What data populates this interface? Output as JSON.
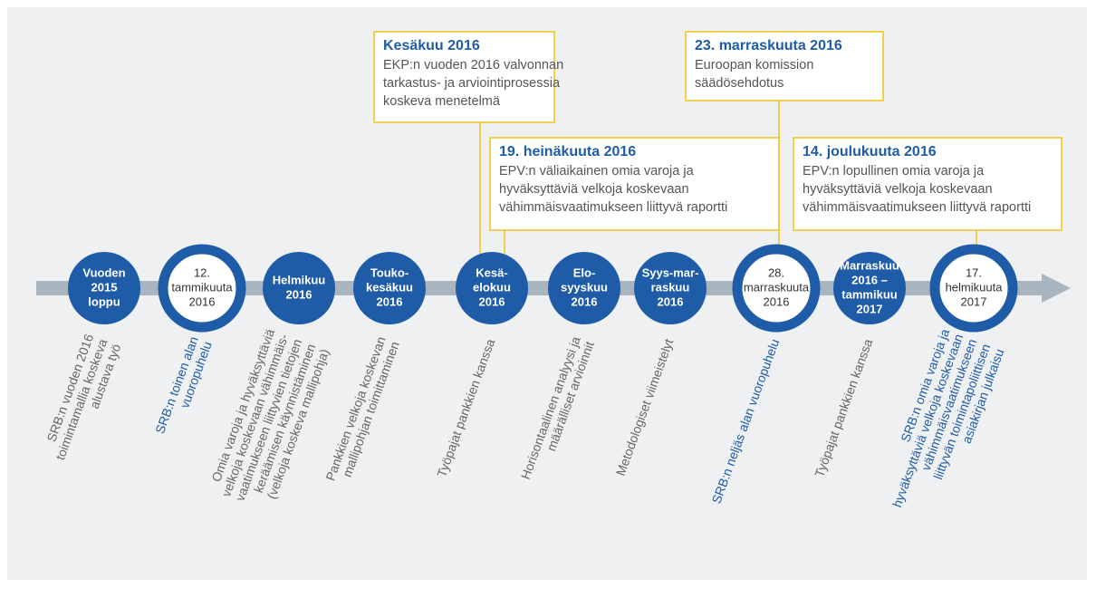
{
  "nodes": [
    {
      "label": [
        "Vuoden",
        "2015",
        "loppu"
      ],
      "big": false,
      "description": [
        "SRB:n vuoden 2016",
        "toimintamallia koskeva",
        "alustava työ"
      ],
      "highlight": false
    },
    {
      "label": [
        "12.",
        "tammikuuta",
        "2016"
      ],
      "big": true,
      "description": [
        "SRB:n toinen alan",
        "vuoropuhelu"
      ],
      "highlight": true
    },
    {
      "label": [
        "Helmikuu",
        "2016"
      ],
      "big": false,
      "description": [
        "Omia varoja ja hyväksyttäviä",
        "velkoja koskevaan vähimmäis-",
        "vaatimukseen liittyvien tietojen",
        "keräämisen käynnistäminen",
        "(velkoja koskeva mallipohja)"
      ],
      "highlight": false
    },
    {
      "label": [
        "Touko-",
        "kesäkuu",
        "2016"
      ],
      "big": false,
      "description": [
        "Pankkien velkoja koskevan",
        "mallipohjan toimittaminen"
      ],
      "highlight": false
    },
    {
      "label": [
        "Kesä-",
        "elokuu",
        "2016"
      ],
      "big": false,
      "description": [
        "Työpajat pankkien kanssa"
      ],
      "highlight": false
    },
    {
      "label": [
        "Elo-",
        "syyskuu",
        "2016"
      ],
      "big": false,
      "description": [
        "Horisontaalinen analyysi ja",
        "määrälliset arvioinnit"
      ],
      "highlight": false
    },
    {
      "label": [
        "Syys-mar-",
        "raskuu",
        "2016"
      ],
      "big": false,
      "description": [
        "Metodologiset viimeistelyt"
      ],
      "highlight": false
    },
    {
      "label": [
        "28.",
        "marraskuuta",
        "2016"
      ],
      "big": true,
      "description": [
        "SRB:n neljäs alan vuoropuhelu"
      ],
      "highlight": true
    },
    {
      "label": [
        "Marraskuu",
        "2016 –",
        "tammikuu",
        "2017"
      ],
      "big": false,
      "description": [
        "Työpajat pankkien kanssa"
      ],
      "highlight": false
    },
    {
      "label": [
        "17.",
        "helmikuuta",
        "2017"
      ],
      "big": true,
      "description": [
        "SRB:n omia varoja ja",
        "hyväksyttäviä velkoja koskevaan",
        "vähimmäisvaatimukseen",
        "liittyvän toimintapoliittisen",
        "asiakirjan julkaisu"
      ],
      "highlight": true
    }
  ],
  "callouts": [
    {
      "title": "Kesäkuu 2016",
      "lines": [
        "EKP:n vuoden 2016 valvonnan",
        "tarkastus- ja arviointiprosessia",
        "koskeva menetelmä"
      ]
    },
    {
      "title": "19. heinäkuuta 2016",
      "lines": [
        "EPV:n väliaikainen omia varoja ja",
        "hyväksyttäviä velkoja koskevaan",
        "vähimmäisvaatimukseen liittyvä raportti"
      ]
    },
    {
      "title": "23. marraskuuta 2016",
      "lines": [
        "Euroopan komission",
        "säädösehdotus"
      ]
    },
    {
      "title": "14. joulukuuta 2016",
      "lines": [
        "EPV:n lopullinen omia varoja ja",
        "hyväksyttäviä velkoja koskevaan",
        "vähimmäisvaatimukseen liittyvä raportti"
      ]
    }
  ]
}
